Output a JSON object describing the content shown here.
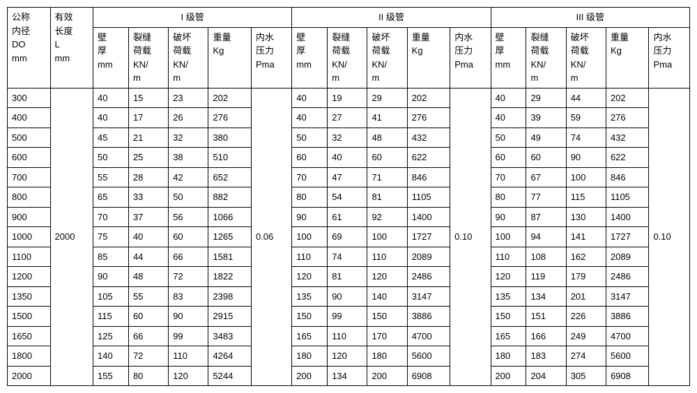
{
  "headers": {
    "col1": {
      "line1": "公称",
      "line2": "内径",
      "line3": "DO",
      "line4": "mm"
    },
    "col2": {
      "line1": "有效",
      "line2": "长度",
      "line3": "L",
      "line4": "mm"
    },
    "group1": "I 级管",
    "group2": "II 级管",
    "group3": "III 级管",
    "sub": {
      "bihou": {
        "l1": "壁",
        "l2": "厚",
        "l3": "mm"
      },
      "liexi": {
        "l1": "裂缝",
        "l2": "荷载",
        "l3": "KN/",
        "l4": "m"
      },
      "pohuai": {
        "l1": "破坏",
        "l2": "荷载",
        "l3": "KN/",
        "l4": "m"
      },
      "zhongliang": {
        "l1": "重量",
        "l2": "Kg"
      },
      "neishui": {
        "l1": "内水",
        "l2": "压力",
        "l3": "Pma"
      }
    }
  },
  "fixed": {
    "length": "2000",
    "p1": "0.06",
    "p2": "0.10",
    "p3": "0.10"
  },
  "rows": [
    {
      "do": "300",
      "g1": [
        "40",
        "15",
        "23",
        "202"
      ],
      "g2": [
        "40",
        "19",
        "29",
        "202"
      ],
      "g3": [
        "40",
        "29",
        "44",
        "202"
      ]
    },
    {
      "do": "400",
      "g1": [
        "40",
        "17",
        "26",
        "276"
      ],
      "g2": [
        "40",
        "27",
        "41",
        "276"
      ],
      "g3": [
        "40",
        "39",
        "59",
        "276"
      ]
    },
    {
      "do": "500",
      "g1": [
        "45",
        "21",
        "32",
        "380"
      ],
      "g2": [
        "50",
        "32",
        "48",
        "432"
      ],
      "g3": [
        "50",
        "49",
        "74",
        "432"
      ]
    },
    {
      "do": "600",
      "g1": [
        "50",
        "25",
        "38",
        "510"
      ],
      "g2": [
        "60",
        "40",
        "60",
        "622"
      ],
      "g3": [
        "60",
        "60",
        "90",
        "622"
      ]
    },
    {
      "do": "700",
      "g1": [
        "55",
        "28",
        "42",
        "652"
      ],
      "g2": [
        "70",
        "47",
        "71",
        "846"
      ],
      "g3": [
        "70",
        "67",
        "100",
        "846"
      ]
    },
    {
      "do": "800",
      "g1": [
        "65",
        "33",
        "50",
        "882"
      ],
      "g2": [
        "80",
        "54",
        "81",
        "1105"
      ],
      "g3": [
        "80",
        "77",
        "115",
        "1105"
      ]
    },
    {
      "do": "900",
      "g1": [
        "70",
        "37",
        "56",
        "1066"
      ],
      "g2": [
        "90",
        "61",
        "92",
        "1400"
      ],
      "g3": [
        "90",
        "87",
        "130",
        "1400"
      ]
    },
    {
      "do": "1000",
      "g1": [
        "75",
        "40",
        "60",
        "1265"
      ],
      "g2": [
        "100",
        "69",
        "100",
        "1727"
      ],
      "g3": [
        "100",
        "94",
        "141",
        "1727"
      ]
    },
    {
      "do": "1100",
      "g1": [
        "85",
        "44",
        "66",
        "1581"
      ],
      "g2": [
        "110",
        "74",
        "110",
        "2089"
      ],
      "g3": [
        "110",
        "108",
        "162",
        "2089"
      ]
    },
    {
      "do": "1200",
      "g1": [
        "90",
        "48",
        "72",
        "1822"
      ],
      "g2": [
        "120",
        "81",
        "120",
        "2486"
      ],
      "g3": [
        "120",
        "119",
        "179",
        "2486"
      ]
    },
    {
      "do": "1350",
      "g1": [
        "105",
        "55",
        "83",
        "2398"
      ],
      "g2": [
        "135",
        "90",
        "140",
        "3147"
      ],
      "g3": [
        "135",
        "134",
        "201",
        "3147"
      ]
    },
    {
      "do": "1500",
      "g1": [
        "115",
        "60",
        "90",
        "2915"
      ],
      "g2": [
        "150",
        "99",
        "150",
        "3886"
      ],
      "g3": [
        "150",
        "151",
        "226",
        "3886"
      ]
    },
    {
      "do": "1650",
      "g1": [
        "125",
        "66",
        "99",
        "3483"
      ],
      "g2": [
        "165",
        "110",
        "170",
        "4700"
      ],
      "g3": [
        "165",
        "166",
        "249",
        "4700"
      ]
    },
    {
      "do": "1800",
      "g1": [
        "140",
        "72",
        "110",
        "4264"
      ],
      "g2": [
        "180",
        "120",
        "180",
        "5600"
      ],
      "g3": [
        "180",
        "183",
        "274",
        "5600"
      ]
    },
    {
      "do": "2000",
      "g1": [
        "155",
        "80",
        "120",
        "5244"
      ],
      "g2": [
        "200",
        "134",
        "200",
        "6908"
      ],
      "g3": [
        "200",
        "204",
        "305",
        "6908"
      ]
    }
  ]
}
